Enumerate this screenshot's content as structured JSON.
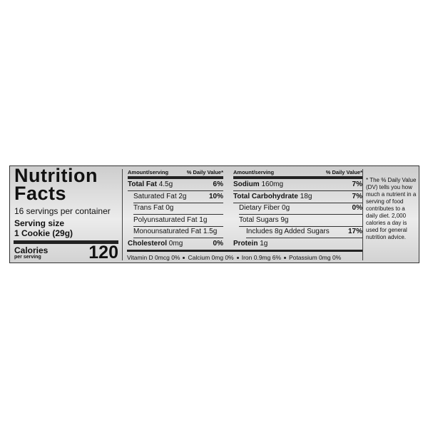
{
  "header": {
    "title": "Nutrition Facts",
    "servings": "16 servings per container",
    "serving_size_label": "Serving size",
    "serving_size": "1 Cookie (29g)",
    "calories_label": "Calories",
    "calories_note": "per serving",
    "calories": "120"
  },
  "left_table": {
    "amount_header": "Amount/serving",
    "dv_header": "% Daily Value*",
    "rows": [
      {
        "name": "Total Fat",
        "amount": "4.5g",
        "dv": "6%"
      },
      {
        "name": "Saturated Fat",
        "amount": "2g",
        "dv": "10%"
      },
      {
        "name": "Trans Fat",
        "amount": "0g"
      },
      {
        "name": "Polyunsaturated Fat",
        "amount": "1g"
      },
      {
        "name": "Monounsaturated Fat",
        "amount": "1.5g"
      },
      {
        "name": "Cholesterol",
        "amount": "0mg",
        "dv": "0%"
      }
    ]
  },
  "right_table": {
    "amount_header": "Amount/serving",
    "dv_header": "% Daily Value*",
    "rows": [
      {
        "name": "Sodium",
        "amount": "160mg",
        "dv": "7%"
      },
      {
        "name": "Total Carbohydrate",
        "amount": "18g",
        "dv": "7%"
      },
      {
        "name": "Dietary Fiber",
        "amount": "0g",
        "dv": "0%"
      },
      {
        "name": "Total Sugars",
        "amount": "9g"
      },
      {
        "name": "Includes 8g Added Sugars",
        "dv": "17%"
      },
      {
        "name": "Protein",
        "amount": "1g"
      }
    ]
  },
  "vitamins": [
    "Vitamin D 0mcg 0%",
    "Calcium 0mg 0%",
    "Iron 0.9mg 6%",
    "Potassium 0mg 0%"
  ],
  "footnote": "* The % Daily Value (DV) tells you how much a nutrient in a serving of food contributes to a daily diet. 2,000 calories a day is used for general nutrition advice."
}
